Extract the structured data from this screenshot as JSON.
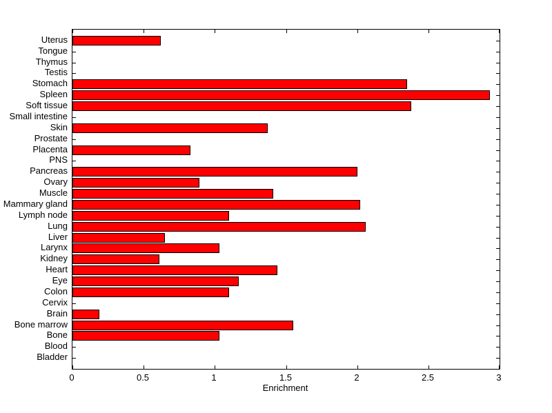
{
  "figure": {
    "background": "#ffffff"
  },
  "chart_data": {
    "type": "bar",
    "orientation": "horizontal",
    "title": "",
    "xlabel": "Enrichment",
    "ylabel": "",
    "xlim": [
      0,
      3
    ],
    "xticks": [
      0,
      0.5,
      1,
      1.5,
      2,
      2.5,
      3
    ],
    "xtick_labels": [
      "0",
      "0.5",
      "1",
      "1.5",
      "2",
      "2.5",
      "3"
    ],
    "grid": false,
    "legend": null,
    "bar_color": "#ff0000",
    "bar_border_color": "#000000",
    "axis_color": "#000000",
    "categories": [
      "Uterus",
      "Tongue",
      "Thymus",
      "Testis",
      "Stomach",
      "Spleen",
      "Soft tissue",
      "Small intestine",
      "Skin",
      "Prostate",
      "Placenta",
      "PNS",
      "Pancreas",
      "Ovary",
      "Muscle",
      "Mammary gland",
      "Lymph node",
      "Lung",
      "Liver",
      "Larynx",
      "Kidney",
      "Heart",
      "Eye",
      "Colon",
      "Cervix",
      "Brain",
      "Bone marrow",
      "Bone",
      "Blood",
      "Bladder"
    ],
    "values": [
      0.62,
      0,
      0,
      0,
      2.35,
      2.93,
      2.38,
      0,
      1.37,
      0,
      0.83,
      0,
      2.0,
      0.89,
      1.41,
      2.02,
      1.1,
      2.06,
      0.65,
      1.03,
      0.61,
      1.44,
      1.17,
      1.1,
      0,
      0.19,
      1.55,
      1.03,
      0,
      0
    ]
  }
}
